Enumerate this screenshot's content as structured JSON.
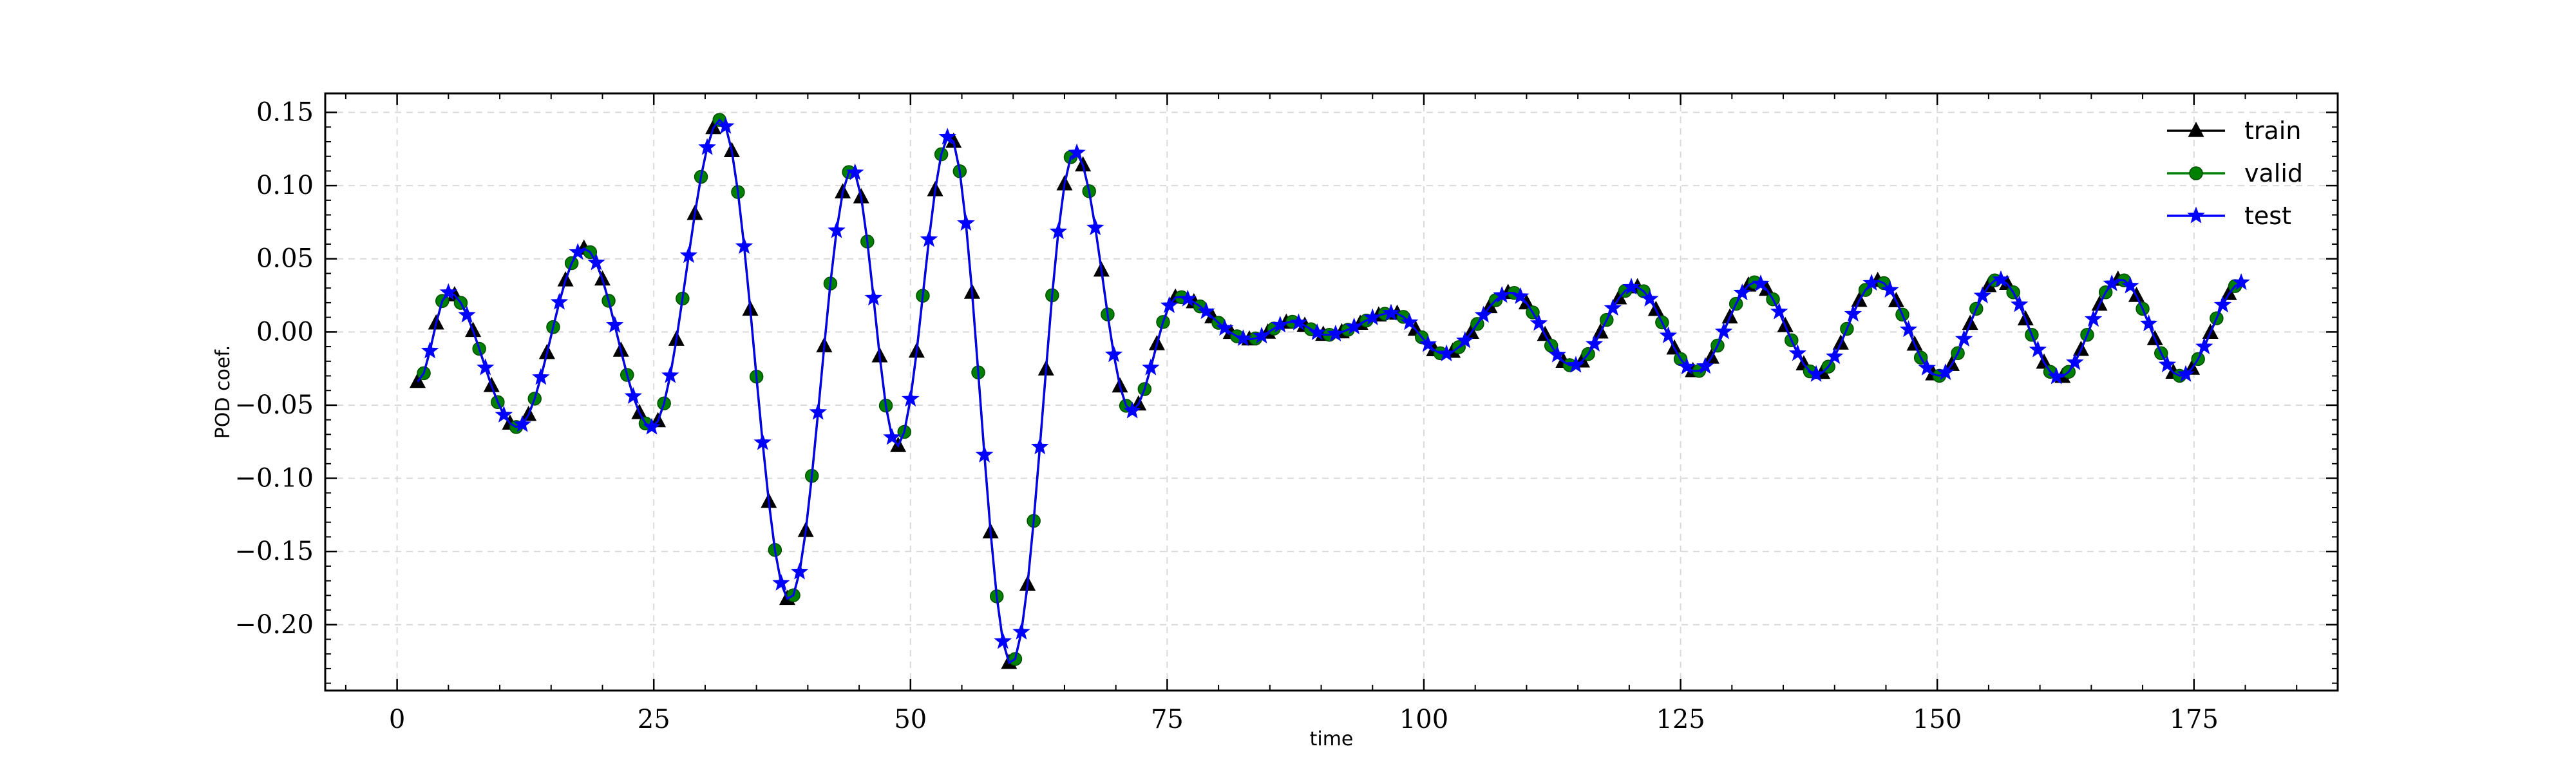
{
  "chart_data": {
    "type": "line",
    "xlabel": "time",
    "ylabel": "POD coef.",
    "xlim": [
      -7,
      189
    ],
    "ylim": [
      -0.245,
      0.163
    ],
    "xticks": [
      0,
      25,
      50,
      75,
      100,
      125,
      150,
      175
    ],
    "yticks": [
      -0.2,
      -0.15,
      -0.1,
      -0.05,
      0.0,
      0.05,
      0.1,
      0.15
    ],
    "xtick_labels": [
      "0",
      "25",
      "50",
      "75",
      "100",
      "125",
      "150",
      "175"
    ],
    "ytick_labels": [
      "−0.20",
      "−0.15",
      "−0.10",
      "−0.05",
      "0.00",
      "0.05",
      "0.10",
      "0.15"
    ],
    "grid": true,
    "legend_position": "top-right",
    "series": [
      {
        "name": "train",
        "color": "#000000",
        "marker": "triangle"
      },
      {
        "name": "valid",
        "color": "#008000",
        "marker": "circle"
      },
      {
        "name": "test",
        "color": "#0000ff",
        "marker": "star"
      }
    ],
    "curve_keypoints": [
      [
        2,
        -0.034
      ],
      [
        5,
        0.027
      ],
      [
        11.7,
        -0.065
      ],
      [
        18.2,
        0.057
      ],
      [
        24.8,
        -0.065
      ],
      [
        31.5,
        0.145
      ],
      [
        38.2,
        -0.183
      ],
      [
        44.3,
        0.111
      ],
      [
        48.7,
        -0.078
      ],
      [
        53.8,
        0.134
      ],
      [
        59.8,
        -0.227
      ],
      [
        66,
        0.123
      ],
      [
        71.5,
        -0.054
      ],
      [
        76,
        0.024
      ],
      [
        83,
        -0.005
      ],
      [
        87.2,
        0.007
      ],
      [
        90.5,
        -0.002
      ],
      [
        97,
        0.013
      ],
      [
        102,
        -0.015
      ],
      [
        108.5,
        0.027
      ],
      [
        114.5,
        -0.023
      ],
      [
        120.5,
        0.031
      ],
      [
        126.5,
        -0.027
      ],
      [
        132.3,
        0.034
      ],
      [
        138.3,
        -0.029
      ],
      [
        144.2,
        0.035
      ],
      [
        150.1,
        -0.03
      ],
      [
        156,
        0.036
      ],
      [
        161.9,
        -0.031
      ],
      [
        167.8,
        0.036
      ],
      [
        173.7,
        -0.03
      ],
      [
        179.8,
        0.034
      ]
    ]
  }
}
